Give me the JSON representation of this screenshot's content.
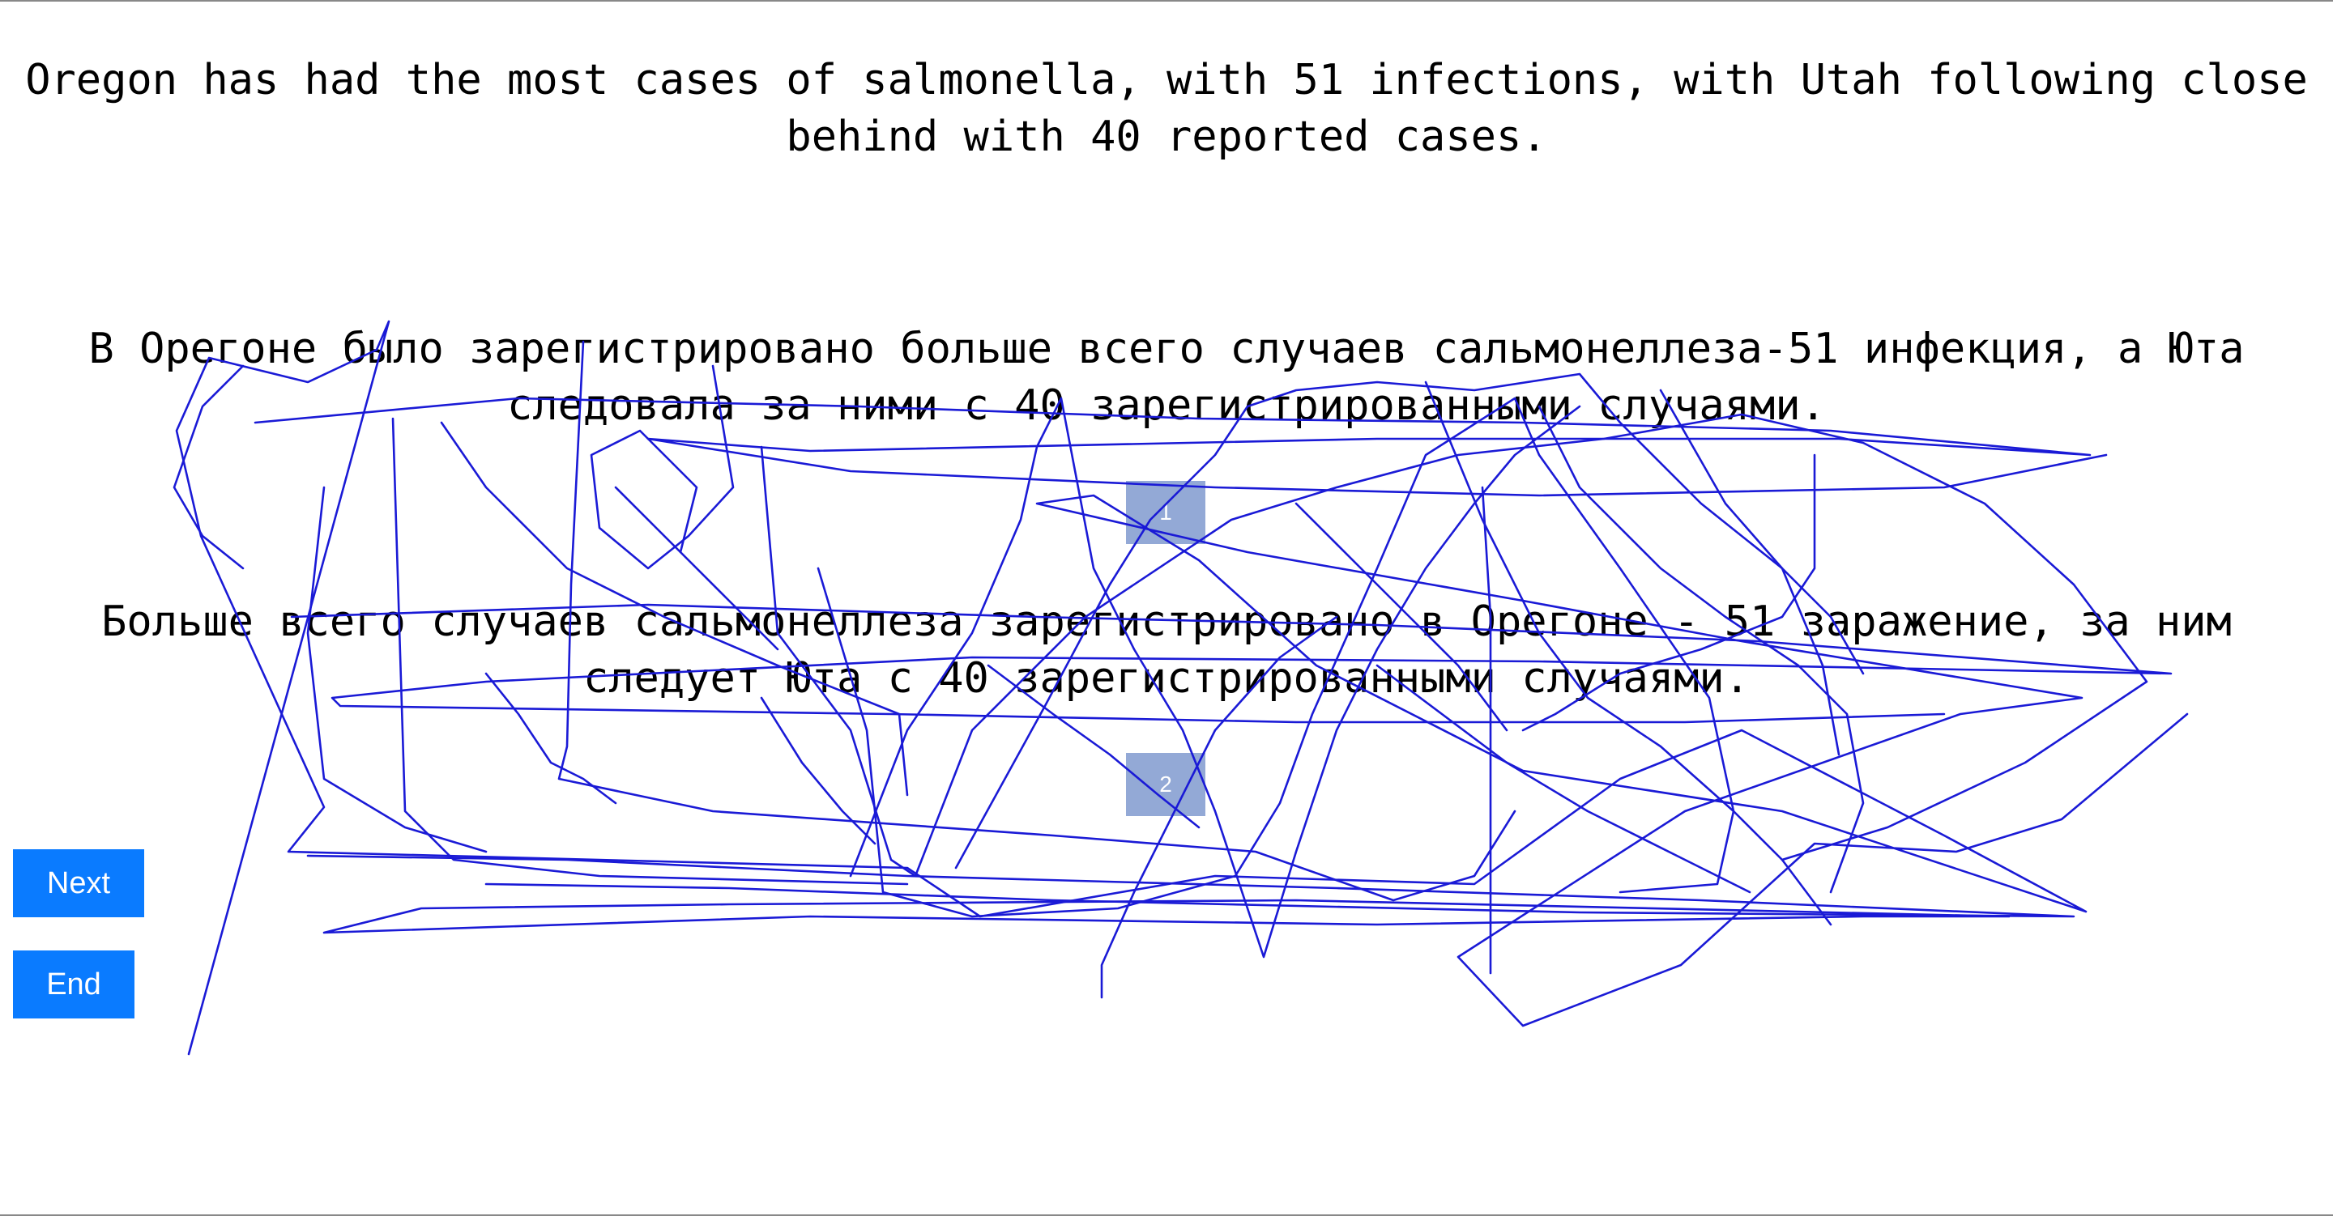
{
  "sentences": {
    "source": "Oregon has had the most cases of salmonella, with 51 infections, with Utah following close behind with 40 reported cases.",
    "translation_1": "В Орегоне было зарегистрировано больше всего случаев сальмонеллеза-51 инфекция, а Юта следовала за ними с 40 зарегистрированными случаями.",
    "translation_2": "Больше всего случаев сальмонеллеза зарегистрировано в Орегоне - 51 заражение, за ним следует Юта с 40 зарегистрированными случаями."
  },
  "markers": {
    "first": "1",
    "second": "2"
  },
  "buttons": {
    "next": "Next",
    "end": "End"
  },
  "colors": {
    "button": "#0a7bff",
    "marker": "#93a9d6",
    "scribble": "#1a1ad6"
  }
}
